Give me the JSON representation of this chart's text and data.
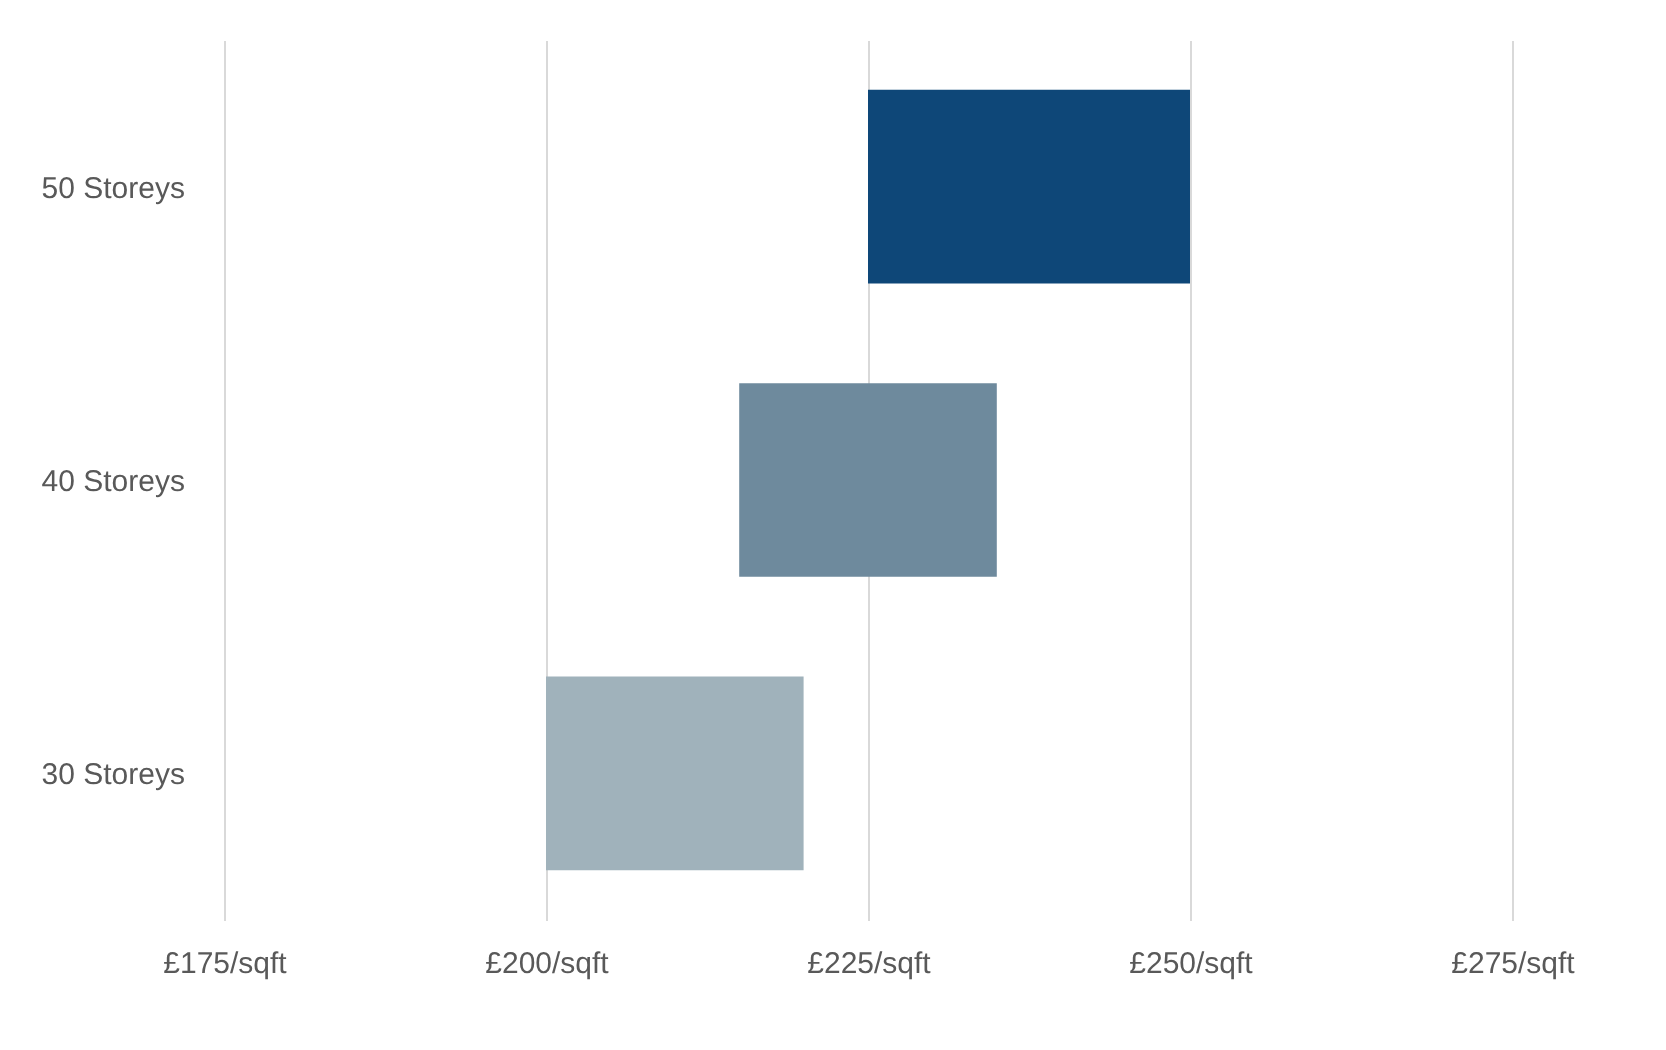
{
  "chart_data": {
    "type": "bar",
    "orientation": "horizontal",
    "categories": [
      "50 Storeys",
      "40 Storeys",
      "30 Storeys"
    ],
    "base": [
      225,
      215,
      200
    ],
    "values": [
      25,
      20,
      20
    ],
    "colors": [
      "#0e4778",
      "#6e8a9d",
      "#a0b2bb"
    ],
    "xlim": [
      175,
      275
    ],
    "xticks": [
      {
        "value": 175,
        "label": "£175/sqft"
      },
      {
        "value": 200,
        "label": "£200/sqft"
      },
      {
        "value": 225,
        "label": "£225/sqft"
      },
      {
        "value": 250,
        "label": "£250/sqft"
      },
      {
        "value": 275,
        "label": "£275/sqft"
      }
    ],
    "grid": "x"
  }
}
